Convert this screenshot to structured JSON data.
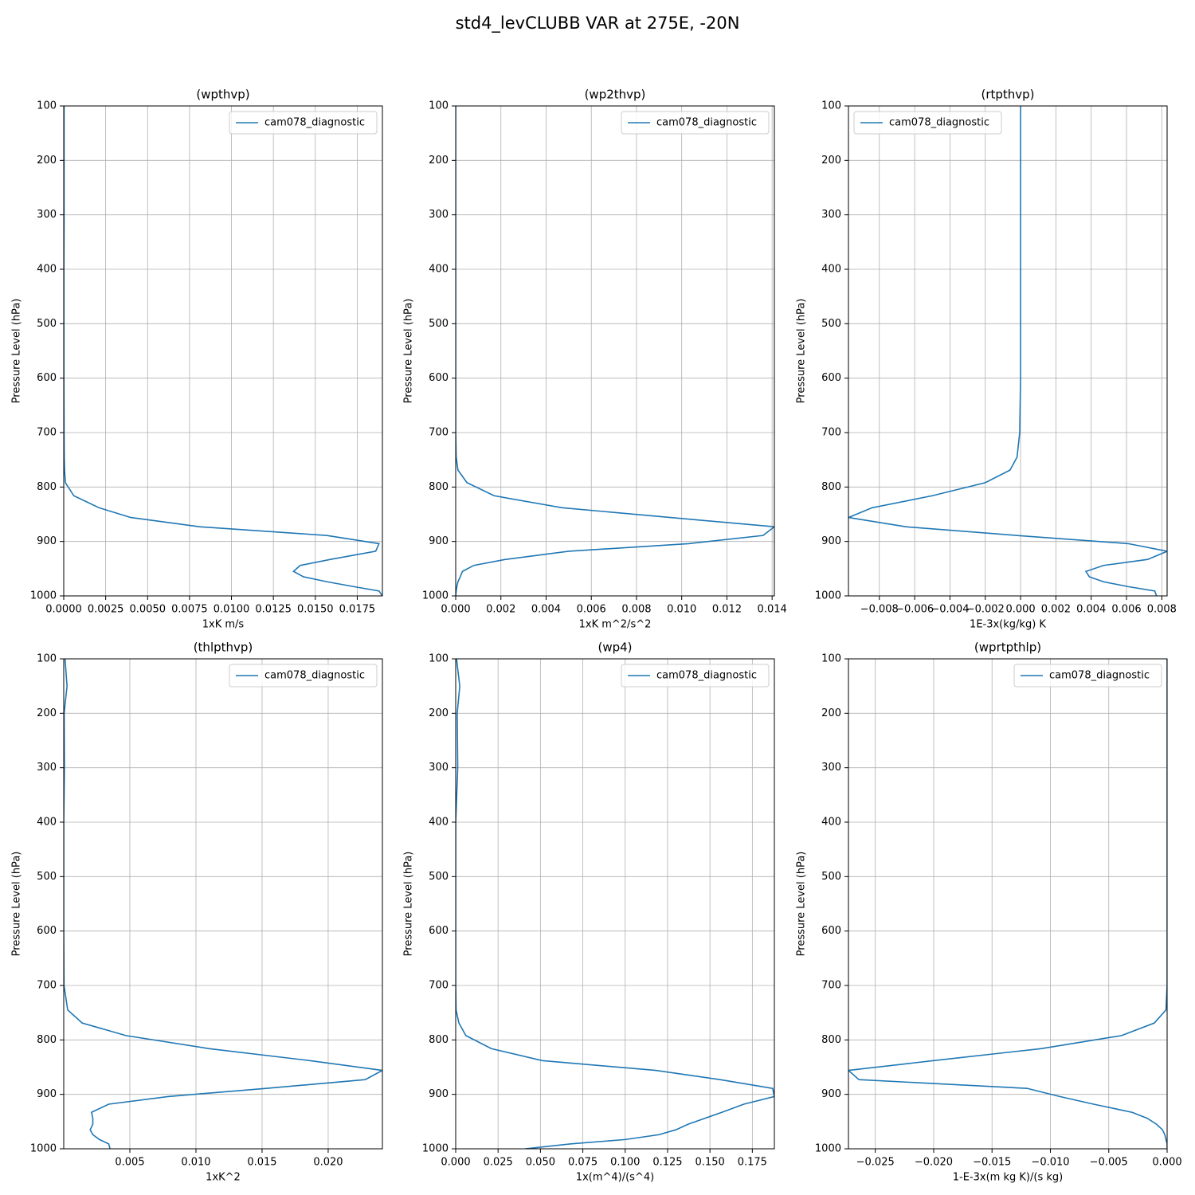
{
  "title": "std4_levCLUBB VAR at 275E, -20N",
  "chart_data": [
    {
      "type": "line",
      "title": "(wpthvp)",
      "xlabel": "1xK m/s",
      "ylabel": "Pressure Level (hPa)",
      "legend": "upper right",
      "grid": true,
      "y": [
        100,
        150,
        200,
        300,
        400,
        500,
        600,
        700,
        745,
        769,
        792,
        816,
        838,
        856,
        873,
        889,
        904,
        918,
        933,
        944,
        955,
        965,
        974,
        983,
        991,
        1000
      ],
      "series": [
        {
          "name": "cam078_diagnostic",
          "color": "#1f77b4",
          "values": [
            2e-05,
            2e-05,
            2e-05,
            2e-05,
            1e-05,
            1e-05,
            1e-05,
            2e-05,
            3e-05,
            5e-05,
            0.0001,
            0.0006,
            0.0021,
            0.004,
            0.0081,
            0.0157,
            0.0188,
            0.0186,
            0.0159,
            0.0141,
            0.0137,
            0.0143,
            0.0157,
            0.0173,
            0.0188,
            0.019
          ]
        }
      ],
      "xlim": [
        0,
        0.019
      ],
      "xticks": [
        {
          "value": 0,
          "label": "0.0000"
        },
        0.0025,
        {
          "value": 0.005,
          "label": "0.0050"
        },
        0.0075,
        {
          "value": 0.01,
          "label": "0.0100"
        },
        0.0125,
        {
          "value": 0.015,
          "label": "0.0150"
        },
        0.0175
      ],
      "ylim": [
        1000,
        100
      ],
      "yticks": [
        100,
        200,
        300,
        400,
        500,
        600,
        700,
        800,
        900,
        1000
      ]
    },
    {
      "type": "line",
      "title": "(wp2thvp)",
      "xlabel": "1xK m^2/s^2",
      "ylabel": "Pressure Level (hPa)",
      "legend": "upper right",
      "grid": true,
      "y": [
        100,
        150,
        200,
        300,
        400,
        500,
        600,
        700,
        745,
        769,
        792,
        816,
        838,
        856,
        873,
        889,
        904,
        918,
        933,
        944,
        955,
        965,
        974,
        983,
        991,
        1000
      ],
      "series": [
        {
          "name": "cam078_diagnostic",
          "color": "#1f77b4",
          "values": [
            0,
            0,
            0,
            0,
            0,
            0,
            0,
            0,
            2e-05,
            0.0001,
            0.0005,
            0.0017,
            0.0047,
            0.0095,
            0.0141,
            0.0136,
            0.0103,
            0.005,
            0.0022,
            0.0008,
            0.0003,
            0.0002,
            0.0001,
            5e-05,
            2e-05,
            0
          ]
        }
      ],
      "xlim": [
        0,
        0.0141
      ],
      "xticks": [
        {
          "value": 0,
          "label": "0.000"
        },
        0.002,
        0.004,
        0.006,
        0.008,
        {
          "value": 0.01,
          "label": "0.010"
        },
        0.012,
        0.014
      ],
      "ylim": [
        1000,
        100
      ],
      "yticks": [
        100,
        200,
        300,
        400,
        500,
        600,
        700,
        800,
        900,
        1000
      ]
    },
    {
      "type": "line",
      "title": "(rtpthvp)",
      "xlabel": "1E-3x(kg/kg) K",
      "ylabel": "Pressure Level (hPa)",
      "legend": "upper left",
      "grid": true,
      "y": [
        100,
        150,
        200,
        300,
        400,
        500,
        600,
        700,
        745,
        769,
        792,
        816,
        838,
        856,
        873,
        889,
        904,
        918,
        933,
        944,
        955,
        965,
        974,
        983,
        991,
        1000
      ],
      "series": [
        {
          "name": "cam078_diagnostic",
          "color": "#1f77b4",
          "values": [
            0,
            0,
            0,
            0,
            0,
            0,
            0,
            -5e-05,
            -0.0002,
            -0.0006,
            -0.002,
            -0.005,
            -0.0084,
            -0.00975,
            -0.0065,
            -0.0002,
            0.0061,
            0.0083,
            0.0072,
            0.0047,
            0.0037,
            0.0039,
            0.0047,
            0.0061,
            0.0076,
            0.0077
          ]
        }
      ],
      "xlim": [
        -0.00975,
        0.0083
      ],
      "xticks": [
        {
          "value": -0.008,
          "label": "−0.008"
        },
        {
          "value": -0.006,
          "label": "−0.006"
        },
        {
          "value": -0.004,
          "label": "−0.004"
        },
        {
          "value": -0.002,
          "label": "−0.002"
        },
        {
          "value": 0,
          "label": "0.000"
        },
        0.002,
        0.004,
        0.006,
        0.008
      ],
      "ylim": [
        1000,
        100
      ],
      "yticks": [
        100,
        200,
        300,
        400,
        500,
        600,
        700,
        800,
        900,
        1000
      ]
    },
    {
      "type": "line",
      "title": "(thlpthvp)",
      "xlabel": "1xK^2",
      "ylabel": "Pressure Level (hPa)",
      "legend": "upper right",
      "grid": true,
      "y": [
        100,
        150,
        200,
        300,
        400,
        500,
        600,
        700,
        745,
        769,
        792,
        816,
        838,
        856,
        873,
        889,
        904,
        918,
        933,
        944,
        955,
        965,
        974,
        983,
        991,
        1000
      ],
      "series": [
        {
          "name": "cam078_diagnostic",
          "color": "#1f77b4",
          "values": [
            0.0001,
            0.00025,
            3e-05,
            5e-05,
            0,
            0,
            0,
            2e-05,
            0.0003,
            0.0014,
            0.0047,
            0.011,
            0.0186,
            0.0241,
            0.0228,
            0.0153,
            0.0079,
            0.0034,
            0.0021,
            0.0022,
            0.0022,
            0.002,
            0.0022,
            0.0027,
            0.0034,
            0.0035
          ]
        }
      ],
      "xlim": [
        0,
        0.0241
      ],
      "xticks": [
        0.005,
        {
          "value": 0.01,
          "label": "0.010"
        },
        0.015,
        {
          "value": 0.02,
          "label": "0.020"
        }
      ],
      "ylim": [
        1000,
        100
      ],
      "yticks": [
        100,
        200,
        300,
        400,
        500,
        600,
        700,
        800,
        900,
        1000
      ]
    },
    {
      "type": "line",
      "title": "(wp4)",
      "xlabel": "1x(m^4)/(s^4)",
      "ylabel": "Pressure Level (hPa)",
      "legend": "upper right",
      "grid": true,
      "y": [
        100,
        150,
        200,
        300,
        400,
        500,
        600,
        700,
        745,
        769,
        792,
        816,
        838,
        856,
        873,
        889,
        904,
        918,
        933,
        944,
        955,
        965,
        974,
        983,
        991,
        1000
      ],
      "series": [
        {
          "name": "cam078_diagnostic",
          "color": "#1f77b4",
          "values": [
            0.0005,
            0.0024,
            0.0009,
            0.0012,
            0,
            0,
            0,
            0,
            0.0002,
            0.0019,
            0.006,
            0.021,
            0.051,
            0.118,
            0.156,
            0.187,
            0.188,
            0.17,
            0.157,
            0.147,
            0.137,
            0.13,
            0.12,
            0.1,
            0.068,
            0.041
          ]
        }
      ],
      "xlim": [
        0,
        0.188
      ],
      "xticks": [
        {
          "value": 0,
          "label": "0.000"
        },
        0.025,
        {
          "value": 0.05,
          "label": "0.050"
        },
        0.075,
        {
          "value": 0.1,
          "label": "0.100"
        },
        0.125,
        {
          "value": 0.15,
          "label": "0.150"
        },
        0.175
      ],
      "ylim": [
        1000,
        100
      ],
      "yticks": [
        100,
        200,
        300,
        400,
        500,
        600,
        700,
        800,
        900,
        1000
      ]
    },
    {
      "type": "line",
      "title": "(wprtpthlp)",
      "xlabel": "1-E-3x(m kg K)/(s kg)",
      "ylabel": "Pressure Level (hPa)",
      "legend": "upper right",
      "grid": true,
      "y": [
        100,
        150,
        200,
        300,
        400,
        500,
        600,
        700,
        745,
        769,
        792,
        816,
        838,
        856,
        873,
        889,
        904,
        918,
        933,
        944,
        955,
        965,
        974,
        983,
        991,
        1000
      ],
      "series": [
        {
          "name": "cam078_diagnostic",
          "color": "#1f77b4",
          "values": [
            0,
            0,
            0,
            0,
            0,
            0,
            0,
            0,
            -0.0001,
            -0.0011,
            -0.0039,
            -0.0108,
            -0.02,
            -0.0273,
            -0.0264,
            -0.012,
            -0.0092,
            -0.0063,
            -0.003,
            -0.0017,
            -0.0009,
            -0.0004,
            -0.0002,
            -0.0001,
            0,
            0
          ]
        }
      ],
      "xlim": [
        -0.0273,
        0
      ],
      "xticks": [
        {
          "value": -0.025,
          "label": "−0.025"
        },
        {
          "value": -0.02,
          "label": "−0.020"
        },
        {
          "value": -0.015,
          "label": "−0.015"
        },
        {
          "value": -0.01,
          "label": "−0.010"
        },
        {
          "value": -0.005,
          "label": "−0.005"
        },
        {
          "value": 0,
          "label": "0.000"
        }
      ],
      "ylim": [
        1000,
        100
      ],
      "yticks": [
        100,
        200,
        300,
        400,
        500,
        600,
        700,
        800,
        900,
        1000
      ]
    }
  ]
}
